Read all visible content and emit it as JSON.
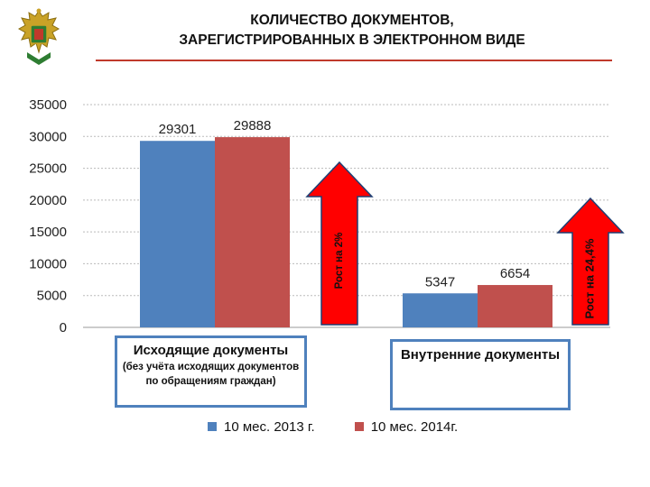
{
  "header": {
    "title_line1": "КОЛИЧЕСТВО ДОКУМЕНТОВ,",
    "title_line2": "ЗАРЕГИСТРИРОВАННЫХ В ЭЛЕКТРОННОМ ВИДЕ",
    "accent_color": "#c0392b"
  },
  "logo": {
    "icon": "double-headed-eagle-emblem-icon"
  },
  "chart_data": {
    "type": "bar",
    "categories": [
      {
        "label": "Исходящие документы",
        "note": "(без учёта исходящих документов по обращениям граждан)"
      },
      {
        "label": "Внутренние документы",
        "note": ""
      }
    ],
    "series": [
      {
        "name": "10 мес. 2013 г.",
        "color": "#4f81bd",
        "values": [
          29301,
          5347
        ],
        "labels": [
          "29301",
          "5347"
        ]
      },
      {
        "name": "10 мес. 2014г.",
        "color": "#c0504d",
        "values": [
          29888,
          6654
        ],
        "labels": [
          "29888",
          "6654"
        ]
      }
    ],
    "ylim": [
      0,
      35000
    ],
    "yticks": [
      "0",
      "5000",
      "10000",
      "15000",
      "20000",
      "25000",
      "30000",
      "35000"
    ],
    "grid": true,
    "legend_position": "bottom",
    "annotations": [
      {
        "text": "Рост на 2%",
        "category_index": 0,
        "color": "#ff0000"
      },
      {
        "text": "Рост на 24,4%",
        "category_index": 1,
        "color": "#ff0000"
      }
    ]
  }
}
